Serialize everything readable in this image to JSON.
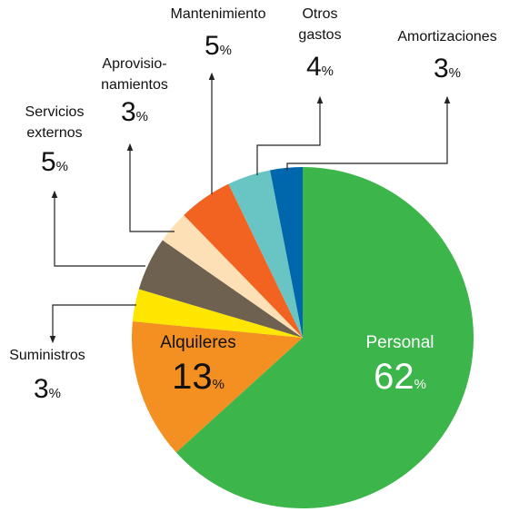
{
  "chart_data": {
    "type": "pie",
    "categories": [
      "Personal",
      "Alquileres",
      "Suministros",
      "Servicios\nexternos",
      "Aprovisio-\nnamientos",
      "Mantenimiento",
      "Otros\ngastos",
      "Amortizaciones"
    ],
    "values": [
      62,
      13,
      3,
      5,
      3,
      5,
      4,
      3
    ],
    "value_labels": [
      "62%",
      "13%",
      "3%",
      "5%",
      "3%",
      "5%",
      "4%",
      "3%"
    ],
    "colors": [
      "#3cb54a",
      "#f39021",
      "#ffe600",
      "#6e6150",
      "#fde0b5",
      "#f26322",
      "#69c5c4",
      "#0067ac"
    ]
  }
}
